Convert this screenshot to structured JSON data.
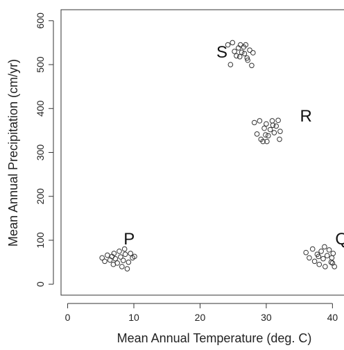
{
  "chart_data": {
    "type": "scatter",
    "title": "",
    "xlabel": "Mean Annual Temperature (deg. C)",
    "ylabel": "Mean Annual Precipitation (cm/yr)",
    "xlim": [
      -1,
      43
    ],
    "ylim": [
      -25,
      625
    ],
    "x_ticks": [
      0,
      10,
      20,
      30,
      40
    ],
    "y_ticks": [
      0,
      100,
      200,
      300,
      400,
      500,
      600
    ],
    "grid": false,
    "legend": "none",
    "point_color": "#333333",
    "clusters": [
      {
        "label": "P",
        "label_at": [
          9.3,
          105
        ],
        "points": [
          [
            5.2,
            60
          ],
          [
            5.6,
            52
          ],
          [
            6.0,
            66
          ],
          [
            6.4,
            55
          ],
          [
            6.7,
            63
          ],
          [
            7.0,
            70
          ],
          [
            7.2,
            58
          ],
          [
            7.5,
            48
          ],
          [
            7.8,
            75
          ],
          [
            8.0,
            62
          ],
          [
            8.2,
            40
          ],
          [
            8.4,
            54
          ],
          [
            8.7,
            68
          ],
          [
            9.0,
            35
          ],
          [
            9.2,
            50
          ],
          [
            9.5,
            70
          ],
          [
            9.8,
            60
          ],
          [
            10.1,
            63
          ],
          [
            6.9,
            45
          ],
          [
            8.6,
            80
          ]
        ]
      },
      {
        "label": "Q",
        "label_at": [
          41.4,
          105
        ],
        "points": [
          [
            36.0,
            72
          ],
          [
            36.5,
            60
          ],
          [
            37.0,
            80
          ],
          [
            37.3,
            52
          ],
          [
            37.7,
            68
          ],
          [
            38.0,
            45
          ],
          [
            38.3,
            75
          ],
          [
            38.6,
            58
          ],
          [
            38.9,
            40
          ],
          [
            39.2,
            65
          ],
          [
            39.5,
            78
          ],
          [
            39.8,
            50
          ],
          [
            40.1,
            70
          ],
          [
            40.3,
            40
          ],
          [
            38.8,
            85
          ],
          [
            39.9,
            60
          ],
          [
            37.9,
            63
          ],
          [
            40.0,
            48
          ]
        ]
      },
      {
        "label": "R",
        "label_at": [
          36.0,
          385
        ],
        "points": [
          [
            28.2,
            368
          ],
          [
            28.6,
            342
          ],
          [
            29.0,
            372
          ],
          [
            29.2,
            330
          ],
          [
            29.5,
            325
          ],
          [
            29.7,
            355
          ],
          [
            30.0,
            365
          ],
          [
            30.3,
            338
          ],
          [
            30.6,
            352
          ],
          [
            30.9,
            372
          ],
          [
            31.2,
            345
          ],
          [
            31.5,
            360
          ],
          [
            31.8,
            373
          ],
          [
            32.0,
            330
          ],
          [
            32.1,
            348
          ],
          [
            30.1,
            325
          ],
          [
            31.0,
            362
          ],
          [
            29.9,
            340
          ]
        ]
      },
      {
        "label": "S",
        "label_at": [
          23.3,
          530
        ],
        "points": [
          [
            24.2,
            545
          ],
          [
            24.6,
            500
          ],
          [
            24.9,
            550
          ],
          [
            25.2,
            530
          ],
          [
            25.5,
            520
          ],
          [
            25.8,
            538
          ],
          [
            26.1,
            545
          ],
          [
            26.3,
            528
          ],
          [
            26.6,
            540
          ],
          [
            26.9,
            545
          ],
          [
            27.2,
            510
          ],
          [
            27.5,
            533
          ],
          [
            27.8,
            498
          ],
          [
            28.0,
            527
          ],
          [
            27.1,
            515
          ],
          [
            26.0,
            518
          ],
          [
            26.7,
            525
          ]
        ]
      }
    ]
  }
}
